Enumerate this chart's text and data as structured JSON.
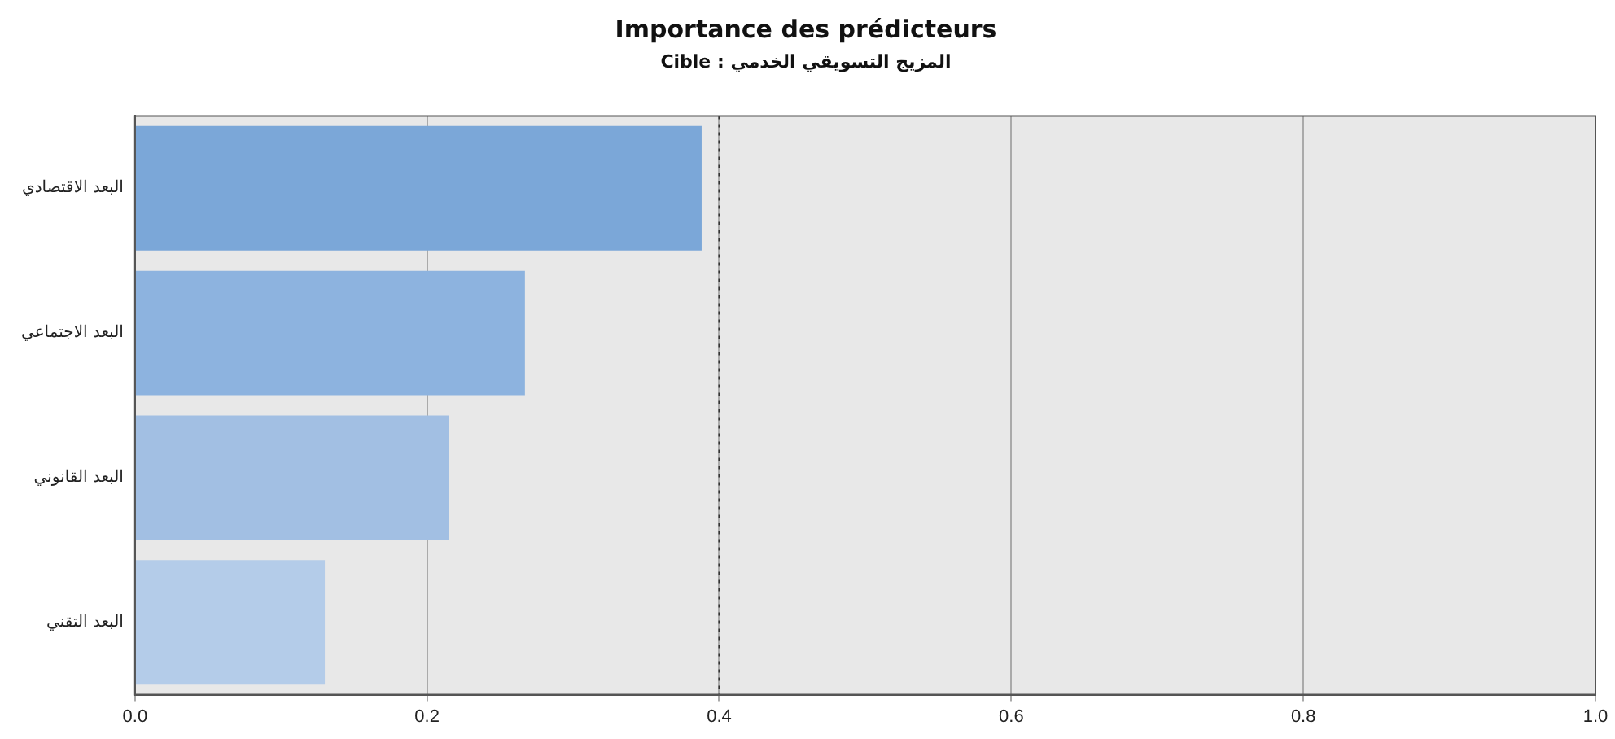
{
  "chart_data": {
    "type": "bar",
    "orientation": "horizontal",
    "title": "Importance des prédicteurs",
    "subtitle": "Cible : المزيج التسويقي الخدمي",
    "categories": [
      "البعد الاقتصادي",
      "البعد الاجتماعي",
      "البعد القانوني",
      "البعد التقني"
    ],
    "values": [
      0.388,
      0.267,
      0.215,
      0.13
    ],
    "colors": [
      "#7ba7d8",
      "#8db3df",
      "#a2bfe3",
      "#b4cce9"
    ],
    "xlim": [
      0,
      1
    ],
    "xticks": [
      {
        "value": 0,
        "label": "0.0"
      },
      {
        "value": 0.2,
        "label": "0.2"
      },
      {
        "value": 0.4,
        "label": "0.4"
      },
      {
        "value": 0.6,
        "label": "0.6"
      },
      {
        "value": 0.8,
        "label": "0.8"
      },
      {
        "value": 1,
        "label": "1.0"
      }
    ],
    "grid": "x",
    "ref_lines": [
      {
        "axis": "x",
        "value": 0.4,
        "line_style": "dotted",
        "color": "#333333"
      }
    ]
  }
}
